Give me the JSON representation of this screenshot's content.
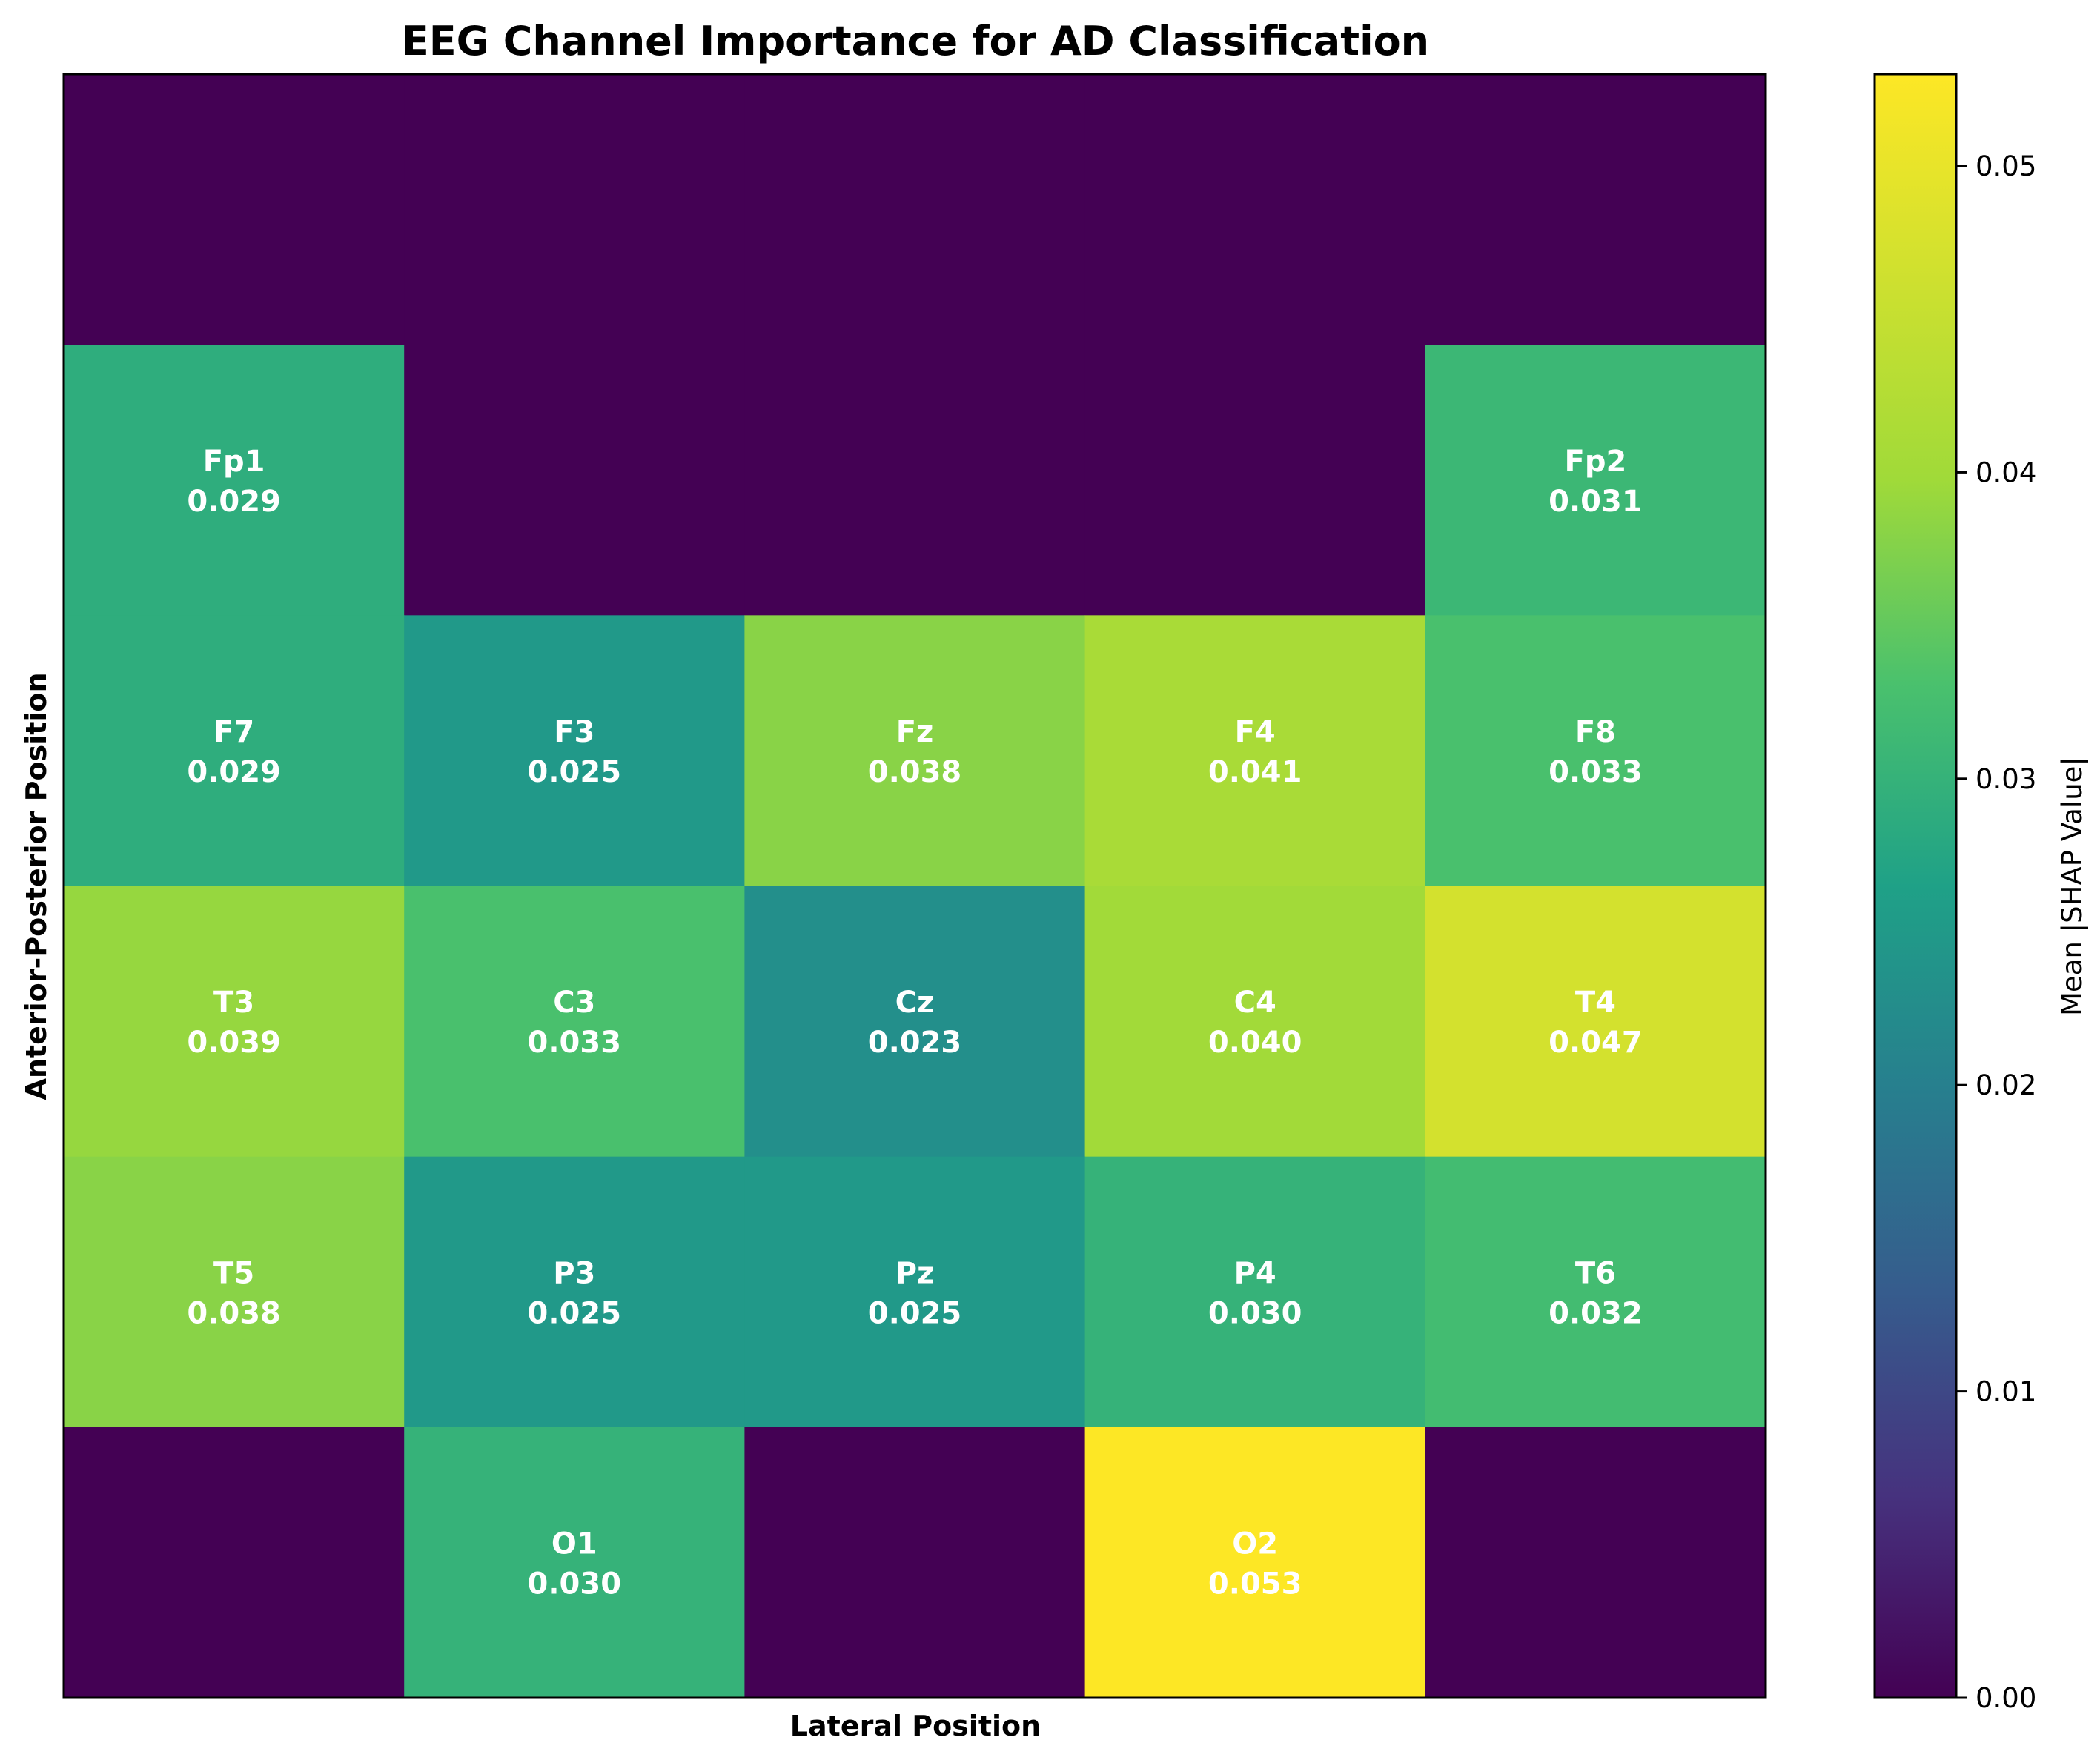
{
  "chart_data": {
    "type": "heatmap",
    "title": "EEG Channel Importance for AD Classification",
    "xlabel": "Lateral Position",
    "ylabel": "Anterior-Posterior Position",
    "colorbar_label": "Mean |SHAP Value|",
    "colormap": "viridis",
    "vmin": 0.0,
    "vmax": 0.053,
    "colorbar_ticks": [
      "0.00",
      "0.01",
      "0.02",
      "0.03",
      "0.04",
      "0.05"
    ],
    "rows": 6,
    "cols": 5,
    "cells": [
      [
        null,
        null,
        null,
        null,
        null
      ],
      [
        {
          "label": "Fp1",
          "value": 0.029
        },
        null,
        null,
        null,
        {
          "label": "Fp2",
          "value": 0.031
        }
      ],
      [
        {
          "label": "F7",
          "value": 0.029
        },
        {
          "label": "F3",
          "value": 0.025
        },
        {
          "label": "Fz",
          "value": 0.038
        },
        {
          "label": "F4",
          "value": 0.041
        },
        {
          "label": "F8",
          "value": 0.033
        }
      ],
      [
        {
          "label": "T3",
          "value": 0.039
        },
        {
          "label": "C3",
          "value": 0.033
        },
        {
          "label": "Cz",
          "value": 0.023
        },
        {
          "label": "C4",
          "value": 0.04
        },
        {
          "label": "T4",
          "value": 0.047
        }
      ],
      [
        {
          "label": "T5",
          "value": 0.038
        },
        {
          "label": "P3",
          "value": 0.025
        },
        {
          "label": "Pz",
          "value": 0.025
        },
        {
          "label": "P4",
          "value": 0.03
        },
        {
          "label": "T6",
          "value": 0.032
        }
      ],
      [
        null,
        {
          "label": "O1",
          "value": 0.03
        },
        null,
        {
          "label": "O2",
          "value": 0.053
        },
        null
      ]
    ]
  }
}
